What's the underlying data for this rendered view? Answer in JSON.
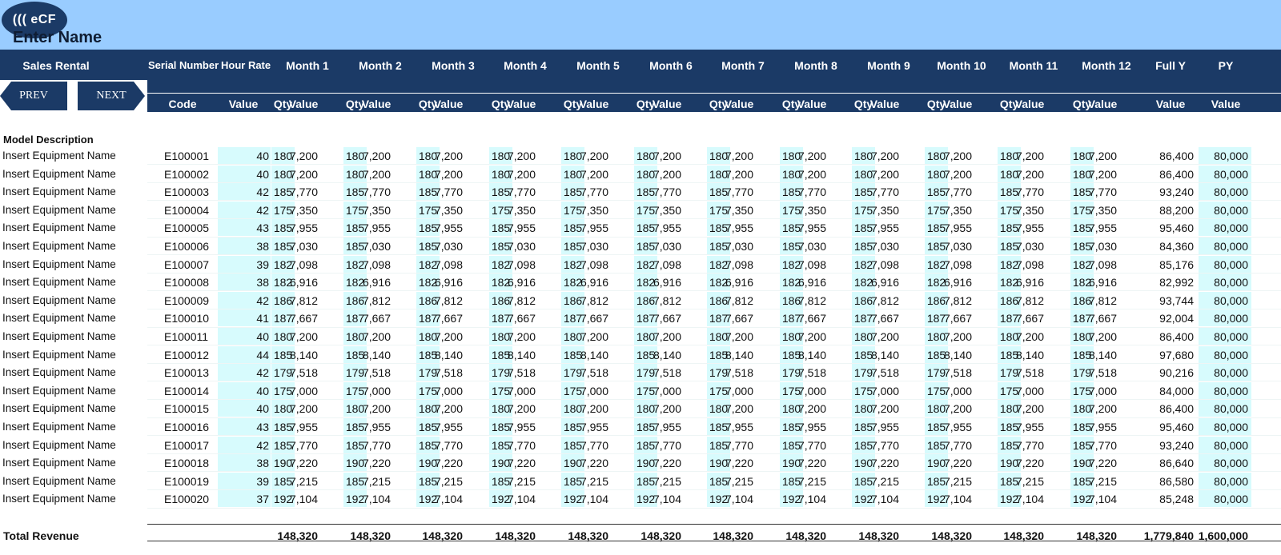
{
  "app": {
    "logo_text": "((( eCF",
    "page_title": "Enter Name"
  },
  "header": {
    "section": "Sales Rental",
    "serial_number": "Serial Number",
    "hour_rate": "Hour Rate",
    "months": [
      "Month 1",
      "Month 2",
      "Month 3",
      "Month 4",
      "Month 5",
      "Month 6",
      "Month 7",
      "Month 8",
      "Month 9",
      "Month 10",
      "Month 11",
      "Month 12"
    ],
    "full_y": "Full Y",
    "py": "PY"
  },
  "subheader": {
    "code": "Code",
    "value": "Value",
    "qty": "Qty"
  },
  "nav": {
    "prev_label": "PREV",
    "next_label": "NEXT"
  },
  "table": {
    "section_label": "Model Description",
    "rows": [
      {
        "name": "Insert Equipment Name",
        "code": "E100001",
        "rate": "40",
        "qty": "180",
        "value": "7,200",
        "full_y": "86,400",
        "py": "80,000"
      },
      {
        "name": "Insert Equipment Name",
        "code": "E100002",
        "rate": "40",
        "qty": "180",
        "value": "7,200",
        "full_y": "86,400",
        "py": "80,000"
      },
      {
        "name": "Insert Equipment Name",
        "code": "E100003",
        "rate": "42",
        "qty": "185",
        "value": "7,770",
        "full_y": "93,240",
        "py": "80,000"
      },
      {
        "name": "Insert Equipment Name",
        "code": "E100004",
        "rate": "42",
        "qty": "175",
        "value": "7,350",
        "full_y": "88,200",
        "py": "80,000"
      },
      {
        "name": "Insert Equipment Name",
        "code": "E100005",
        "rate": "43",
        "qty": "185",
        "value": "7,955",
        "full_y": "95,460",
        "py": "80,000"
      },
      {
        "name": "Insert Equipment Name",
        "code": "E100006",
        "rate": "38",
        "qty": "185",
        "value": "7,030",
        "full_y": "84,360",
        "py": "80,000"
      },
      {
        "name": "Insert Equipment Name",
        "code": "E100007",
        "rate": "39",
        "qty": "182",
        "value": "7,098",
        "full_y": "85,176",
        "py": "80,000"
      },
      {
        "name": "Insert Equipment Name",
        "code": "E100008",
        "rate": "38",
        "qty": "182",
        "value": "6,916",
        "full_y": "82,992",
        "py": "80,000"
      },
      {
        "name": "Insert Equipment Name",
        "code": "E100009",
        "rate": "42",
        "qty": "186",
        "value": "7,812",
        "full_y": "93,744",
        "py": "80,000"
      },
      {
        "name": "Insert Equipment Name",
        "code": "E100010",
        "rate": "41",
        "qty": "187",
        "value": "7,667",
        "full_y": "92,004",
        "py": "80,000"
      },
      {
        "name": "Insert Equipment Name",
        "code": "E100011",
        "rate": "40",
        "qty": "180",
        "value": "7,200",
        "full_y": "86,400",
        "py": "80,000"
      },
      {
        "name": "Insert Equipment Name",
        "code": "E100012",
        "rate": "44",
        "qty": "185",
        "value": "8,140",
        "full_y": "97,680",
        "py": "80,000"
      },
      {
        "name": "Insert Equipment Name",
        "code": "E100013",
        "rate": "42",
        "qty": "179",
        "value": "7,518",
        "full_y": "90,216",
        "py": "80,000"
      },
      {
        "name": "Insert Equipment Name",
        "code": "E100014",
        "rate": "40",
        "qty": "175",
        "value": "7,000",
        "full_y": "84,000",
        "py": "80,000"
      },
      {
        "name": "Insert Equipment Name",
        "code": "E100015",
        "rate": "40",
        "qty": "180",
        "value": "7,200",
        "full_y": "86,400",
        "py": "80,000"
      },
      {
        "name": "Insert Equipment Name",
        "code": "E100016",
        "rate": "43",
        "qty": "185",
        "value": "7,955",
        "full_y": "95,460",
        "py": "80,000"
      },
      {
        "name": "Insert Equipment Name",
        "code": "E100017",
        "rate": "42",
        "qty": "185",
        "value": "7,770",
        "full_y": "93,240",
        "py": "80,000"
      },
      {
        "name": "Insert Equipment Name",
        "code": "E100018",
        "rate": "38",
        "qty": "190",
        "value": "7,220",
        "full_y": "86,640",
        "py": "80,000"
      },
      {
        "name": "Insert Equipment Name",
        "code": "E100019",
        "rate": "39",
        "qty": "185",
        "value": "7,215",
        "full_y": "86,580",
        "py": "80,000"
      },
      {
        "name": "Insert Equipment Name",
        "code": "E100020",
        "rate": "37",
        "qty": "192",
        "value": "7,104",
        "full_y": "85,248",
        "py": "80,000"
      }
    ]
  },
  "totals": {
    "label": "Total Revenue",
    "months": [
      "148,320",
      "148,320",
      "148,320",
      "148,320",
      "148,320",
      "148,320",
      "148,320",
      "148,320",
      "148,320",
      "148,320",
      "148,320",
      "148,320"
    ],
    "full_y": "1,779,840",
    "py": "1,600,000"
  },
  "colors": {
    "header_bg": "#1b3a66",
    "topbar_bg": "#99ccff",
    "input_cell_bg": "#d7fbfd"
  }
}
